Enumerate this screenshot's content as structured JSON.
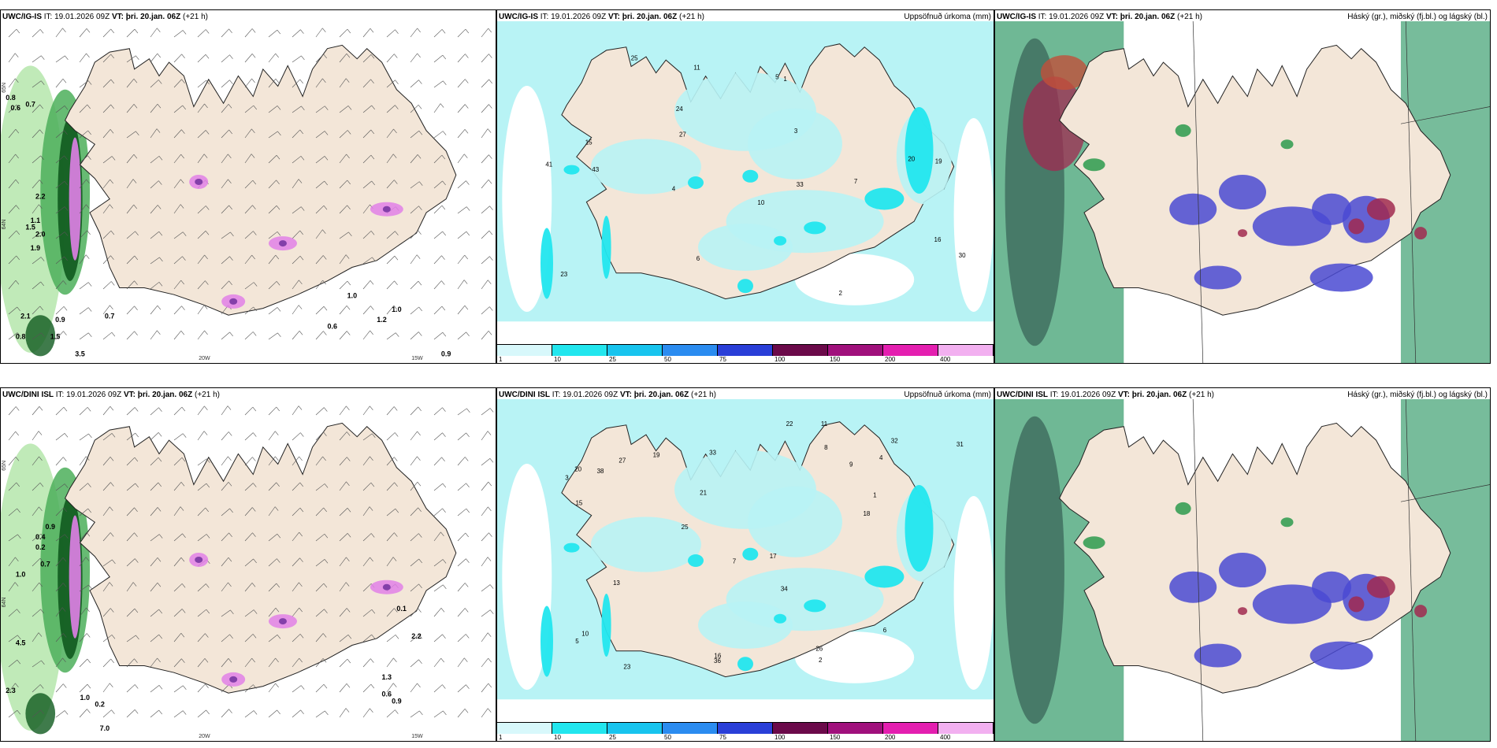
{
  "panels": [
    {
      "id": "p1",
      "model": "UWC/IG-IS",
      "it": "IT: 19.01.2026 09Z",
      "vt_prefix": "VT:",
      "vt": "þri. 20.jan. 06Z",
      "lead": "(+21 h)",
      "title": "",
      "type": "wind"
    },
    {
      "id": "p2",
      "model": "UWC/IG-IS",
      "it": "IT: 19.01.2026 09Z",
      "vt_prefix": "VT:",
      "vt": "þri. 20.jan. 06Z",
      "lead": "(+21 h)",
      "title": "Uppsöfnuð úrkoma (mm)",
      "type": "precip"
    },
    {
      "id": "p3",
      "model": "UWC/IG-IS",
      "it": "IT: 19.01.2026 09Z",
      "vt_prefix": "VT:",
      "vt": "þri. 20.jan. 06Z",
      "lead": "(+21 h)",
      "title": "Háský (gr.), miðský (fj.bl.) og lágský (bl.)",
      "type": "cloud"
    },
    {
      "id": "p4",
      "model": "UWC/DINI ISL",
      "it": "IT: 19.01.2026 09Z",
      "vt_prefix": "VT:",
      "vt": "þri. 20.jan. 06Z",
      "lead": "(+21 h)",
      "title": "",
      "type": "wind"
    },
    {
      "id": "p5",
      "model": "UWC/DINI ISL",
      "it": "IT: 19.01.2026 09Z",
      "vt_prefix": "VT:",
      "vt": "þri. 20.jan. 06Z",
      "lead": "(+21 h)",
      "title": "Uppsöfnuð úrkoma (mm)",
      "type": "precip"
    },
    {
      "id": "p6",
      "model": "UWC/DINI ISL",
      "it": "IT: 19.01.2026 09Z",
      "vt_prefix": "VT:",
      "vt": "þri. 20.jan. 06Z",
      "lead": "(+21 h)",
      "title": "Háský (gr.), miðský (fj.bl.) og lágský (bl.)",
      "type": "cloud"
    }
  ],
  "colorbar": {
    "labels": [
      "1",
      "10",
      "25",
      "50",
      "75",
      "100",
      "150",
      "200",
      "400"
    ],
    "colors": [
      "#d8f8fb",
      "#22e6ee",
      "#18c4ee",
      "#2b8cf0",
      "#2a3fd8",
      "#6b0a4a",
      "#a0107c",
      "#e41fb0",
      "#f2b0f0"
    ]
  },
  "wind_labels": {
    "lon": [
      "20W",
      "15W"
    ],
    "lat": [
      "65N",
      "64N"
    ],
    "p1_values": [
      "0.8",
      "0.6",
      "0.7",
      "2.2",
      "1.1",
      "1.5",
      "2.0",
      "1.9",
      "2.1",
      "0.9",
      "0.7",
      "0.8",
      "1.5",
      "3.5",
      "1.0",
      "1.2",
      "1.0",
      "0.6",
      "0.9"
    ],
    "p4_values": [
      "0.9",
      "0.4",
      "0.2",
      "0.7",
      "1.0",
      "1.0",
      "0.2",
      "7.0",
      "2.3",
      "4.5",
      "0.1",
      "2.2",
      "1.3",
      "0.6",
      "0.9"
    ]
  },
  "precip_labels": {
    "p2": [
      "1",
      "2",
      "3",
      "4",
      "5",
      "6",
      "7",
      "10",
      "11",
      "15",
      "16",
      "19",
      "20",
      "23",
      "24",
      "25",
      "27",
      "30",
      "33",
      "41",
      "43"
    ],
    "p5": [
      "1",
      "2",
      "3",
      "4",
      "5",
      "6",
      "7",
      "8",
      "9",
      "10",
      "11",
      "13",
      "15",
      "16",
      "17",
      "18",
      "19",
      "20",
      "21",
      "22",
      "23",
      "25",
      "26",
      "27",
      "31",
      "32",
      "33",
      "34",
      "36",
      "38"
    ]
  },
  "colors": {
    "land": "#f3e6d8",
    "sea_precip": "#b8f3f5",
    "precip_strong": "#22e6ee",
    "wind_green_light": "#b9e8b0",
    "wind_green": "#4caf5a",
    "wind_green_dark": "#0f5a1e",
    "wind_pink": "#e080e8",
    "cloud_high": "#2c9a4e",
    "cloud_mid": "#4a4ad2",
    "cloud_low": "#a02a50",
    "cloud_sea": "#5fb08a"
  }
}
